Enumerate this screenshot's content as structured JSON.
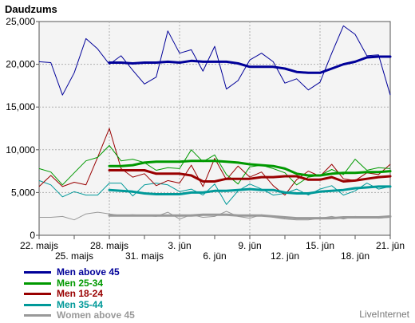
{
  "chart_data": {
    "type": "line",
    "ylabel": "Daudzums",
    "ylim": [
      0,
      25000
    ],
    "yticks": [
      0,
      5000,
      10000,
      15000,
      20000,
      25000
    ],
    "ytick_labels": [
      "0",
      "5,000",
      "10,000",
      "15,000",
      "20,000",
      "25,000"
    ],
    "grid": true,
    "x_dates": [
      "22. maijs",
      "23. maijs",
      "24. maijs",
      "25. maijs",
      "26. maijs",
      "27. maijs",
      "28. maijs",
      "29. maijs",
      "30. maijs",
      "31. maijs",
      "1. jūn",
      "2. jūn",
      "3. jūn",
      "4. jūn",
      "5. jūn",
      "6. jūn",
      "7. jūn",
      "8. jūn",
      "9. jūn",
      "10. jūn",
      "11. jūn",
      "12. jūn",
      "13. jūn",
      "14. jūn",
      "15. jūn",
      "16. jūn",
      "17. jūn",
      "18. jūn",
      "19. jūn",
      "20. jūn",
      "21. jūn"
    ],
    "x_tick_labels_top": [
      {
        "index": 0,
        "label": "22. maijs"
      },
      {
        "index": 6,
        "label": "28. maijs"
      },
      {
        "index": 12,
        "label": "3. jūn"
      },
      {
        "index": 18,
        "label": "9. jūn"
      },
      {
        "index": 24,
        "label": "15. jūn"
      },
      {
        "index": 30,
        "label": "21. jūn"
      }
    ],
    "x_tick_labels_bottom": [
      {
        "index": 3,
        "label": "25. maijs"
      },
      {
        "index": 9,
        "label": "31. maijs"
      },
      {
        "index": 15,
        "label": "6. jūn"
      },
      {
        "index": 21,
        "label": "12. jūn"
      },
      {
        "index": 27,
        "label": "18. jūn"
      }
    ],
    "trend_start_index": 6,
    "series": [
      {
        "name": "Men above 45",
        "color": "#000099",
        "values": [
          20300,
          20200,
          16400,
          19000,
          23000,
          21800,
          20000,
          21000,
          19300,
          17700,
          18500,
          23900,
          21300,
          21700,
          19200,
          22100,
          17100,
          18100,
          20500,
          21300,
          20300,
          17800,
          18300,
          17000,
          17900,
          21300,
          24500,
          23500,
          21000,
          21100,
          16400
        ],
        "trend": [
          null,
          null,
          null,
          null,
          null,
          null,
          20200,
          20200,
          20100,
          20200,
          20200,
          20300,
          20200,
          20400,
          20300,
          20300,
          20300,
          20100,
          19700,
          19700,
          19700,
          19500,
          19100,
          19000,
          19000,
          19500,
          20000,
          20300,
          20800,
          20900,
          20900
        ]
      },
      {
        "name": "Men 25-34",
        "color": "#009900",
        "values": [
          7800,
          7400,
          5900,
          7300,
          8700,
          9100,
          10500,
          8700,
          8900,
          8500,
          7600,
          7900,
          7800,
          10000,
          8600,
          9400,
          7100,
          6000,
          8000,
          8200,
          7800,
          7300,
          5900,
          6800,
          7000,
          7700,
          7100,
          8900,
          7600,
          7900,
          7800
        ],
        "trend": [
          null,
          null,
          null,
          null,
          null,
          null,
          8100,
          8100,
          8200,
          8500,
          8600,
          8600,
          8600,
          8700,
          8700,
          8700,
          8600,
          8500,
          8300,
          8200,
          8100,
          7800,
          7200,
          7000,
          7000,
          7200,
          7300,
          7300,
          7400,
          7400,
          7500
        ]
      },
      {
        "name": "Men 18-24",
        "color": "#990000",
        "values": [
          5700,
          7000,
          5700,
          6200,
          5900,
          9100,
          12500,
          7800,
          6800,
          7200,
          5800,
          6400,
          6100,
          8200,
          5700,
          9000,
          6500,
          8100,
          6800,
          7400,
          5800,
          4700,
          6500,
          7500,
          6900,
          8300,
          6600,
          6400,
          7300,
          7100,
          8300
        ],
        "trend": [
          null,
          null,
          null,
          null,
          null,
          null,
          7600,
          7600,
          7600,
          7600,
          7200,
          7200,
          7200,
          7000,
          6300,
          6300,
          6600,
          6600,
          6600,
          6800,
          6800,
          6900,
          6900,
          6500,
          6500,
          6800,
          6300,
          6400,
          6600,
          6800,
          6900
        ]
      },
      {
        "name": "Men 35-44",
        "color": "#009999",
        "values": [
          6400,
          5900,
          4500,
          5100,
          4700,
          4700,
          6100,
          6100,
          4600,
          5900,
          6100,
          5900,
          5100,
          5400,
          4700,
          6000,
          3600,
          5200,
          6000,
          5400,
          4700,
          4900,
          5400,
          4700,
          5400,
          5800,
          4700,
          5200,
          6100,
          5400,
          5700
        ],
        "trend": [
          null,
          null,
          null,
          null,
          null,
          null,
          5300,
          5200,
          5100,
          4900,
          4800,
          4800,
          4800,
          5000,
          5000,
          5200,
          5200,
          5300,
          5400,
          5300,
          5300,
          5000,
          4900,
          4900,
          5100,
          5200,
          5300,
          5500,
          5600,
          5700,
          5700
        ]
      },
      {
        "name": "Women above 45",
        "color": "#999999",
        "values": [
          2100,
          2100,
          2200,
          1800,
          2500,
          2700,
          2500,
          2300,
          2400,
          2300,
          2200,
          2700,
          1900,
          2400,
          2100,
          2200,
          2800,
          2200,
          2000,
          2400,
          2100,
          1900,
          1800,
          1800,
          2000,
          2200,
          1900,
          2200,
          2100,
          2000,
          2100
        ],
        "trend": [
          null,
          null,
          null,
          null,
          null,
          null,
          2300,
          2300,
          2300,
          2300,
          2300,
          2300,
          2300,
          2300,
          2400,
          2400,
          2400,
          2300,
          2300,
          2300,
          2200,
          2100,
          2000,
          2000,
          2000,
          2000,
          2100,
          2100,
          2100,
          2100,
          2200
        ]
      }
    ]
  },
  "legend": {
    "items": [
      {
        "label": "Men above 45",
        "color": "#000099"
      },
      {
        "label": "Men 25-34",
        "color": "#009900"
      },
      {
        "label": "Men 18-24",
        "color": "#990000"
      },
      {
        "label": "Men 35-44",
        "color": "#009999"
      },
      {
        "label": "Women above 45",
        "color": "#999999"
      }
    ]
  },
  "credit": "LiveInternet"
}
